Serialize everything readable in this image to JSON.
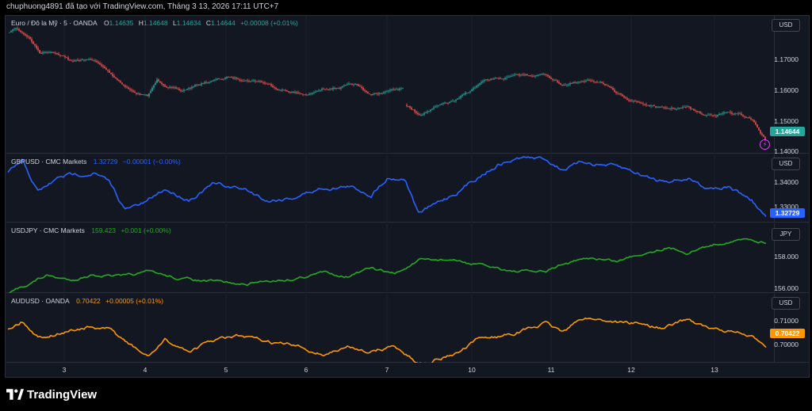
{
  "header": {
    "caption": "chuphuong4891 đã tạo với TradingView.com, Tháng 3 13, 2026 17:11 UTC+7"
  },
  "colors": {
    "background": "#131722",
    "up": "#26a69a",
    "down": "#ef5350",
    "gbp": "#2962ff",
    "jpy": "#22ab21",
    "aud": "#ff9800",
    "grid": "#2a2e39"
  },
  "panes": {
    "eurusd": {
      "title": "Euro / Đô la Mỹ · 5 · OANDA",
      "o_label": "O",
      "o": "1.14635",
      "h_label": "H",
      "h": "1.14648",
      "l_label": "L",
      "l": "1.14634",
      "c_label": "C",
      "c": "1.14644",
      "change": "+0.00008 (+0.01%)",
      "currency": "USD",
      "scale": [
        "1.17000",
        "1.16000",
        "1.15000",
        "1.14000"
      ],
      "last": "1.14644",
      "icon": "lightning-icon"
    },
    "gbpusd": {
      "title": "GBPUSD · CMC Markets",
      "price": "1.32729",
      "change": "−0.00001 (−0.00%)",
      "currency": "USD",
      "scale": [
        "1.34000",
        "1.33000"
      ],
      "last": "1.32729"
    },
    "usdjpy": {
      "title": "USDJPY · CMC Markets",
      "price": "159.423",
      "change": "+0.001 (+0.00%)",
      "currency": "JPY",
      "scale": [
        "158.000",
        "156.000"
      ]
    },
    "audusd": {
      "title": "AUDUSD · OANDA",
      "price": "0.70422",
      "change": "+0.00005 (+0.01%)",
      "currency": "USD",
      "scale": [
        "0.71000",
        "0.70000"
      ],
      "last": "0.70422"
    }
  },
  "time_axis": [
    "3",
    "4",
    "5",
    "6",
    "7",
    "10",
    "11",
    "12",
    "13"
  ],
  "branding": {
    "name": "TradingView",
    "logo": "tradingview-logo-icon"
  }
}
